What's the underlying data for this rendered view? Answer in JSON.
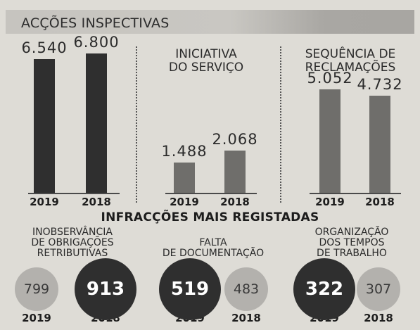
{
  "header": {
    "title": "ACÇÕES INSPECTIVAS"
  },
  "colors": {
    "dark": "#2f2f2f",
    "medium": "#6f6e6b",
    "light": "#b3b1ad"
  },
  "chart_data": [
    {
      "type": "bar",
      "title": "",
      "categories": [
        "2019",
        "2018"
      ],
      "values": [
        6540,
        6800
      ],
      "value_labels": [
        "6.540",
        "6.800"
      ],
      "ylim": [
        0,
        7500
      ],
      "color": "#2f2f2f"
    },
    {
      "type": "bar",
      "title": "INICIATIVA\nDO SERVIÇO",
      "categories": [
        "2019",
        "2018"
      ],
      "values": [
        1488,
        2068
      ],
      "value_labels": [
        "1.488",
        "2.068"
      ],
      "ylim": [
        0,
        7500
      ],
      "color": "#6f6e6b"
    },
    {
      "type": "bar",
      "title": "SEQUÊNCIA DE\nRECLAMAÇÕES",
      "categories": [
        "2019",
        "2018"
      ],
      "values": [
        5052,
        4732
      ],
      "value_labels": [
        "5.052",
        "4.732"
      ],
      "ylim": [
        0,
        7500
      ],
      "color": "#6f6e6b"
    }
  ],
  "infractions": {
    "title": "INFRACÇÕES MAIS REGISTADAS",
    "categories": [
      {
        "title": "INOBSERVÂNCIA\nDE OBRIGAÇÕES\nRETRIBUTIVAS",
        "v2019": 799,
        "v2018": 913,
        "label2019": "799",
        "label2018": "913",
        "year2019": "2019",
        "year2018": "2018"
      },
      {
        "title": "FALTA\nDE DOCUMENTAÇÃO",
        "v2019": 519,
        "v2018": 483,
        "label2019": "519",
        "label2018": "483",
        "year2019": "2019",
        "year2018": "2018"
      },
      {
        "title": "ORGANIZAÇÃO\nDOS TEMPOS\nDE TRABALHO",
        "v2019": 322,
        "v2018": 307,
        "label2019": "322",
        "label2018": "307",
        "year2019": "2019",
        "year2018": "2018"
      }
    ]
  }
}
